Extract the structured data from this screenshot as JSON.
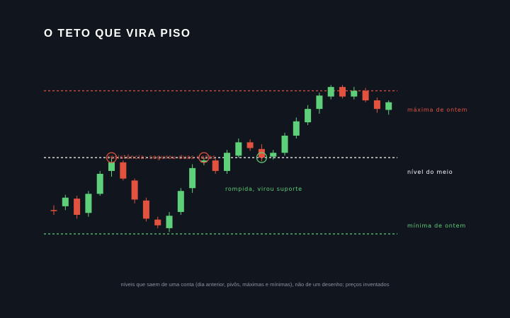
{
  "title": "O TETO QUE VIRA PISO",
  "caption": "níveis que saem de uma conta (dia anterior, pivôs, máximas e mínimas), não de um desenho; preços inventados",
  "colors": {
    "background": "#11161e",
    "up": "#5fd07a",
    "down": "#e2523f",
    "resistance": "#e2523f",
    "middle": "#ffffff",
    "support": "#5fd07a"
  },
  "chart_data": {
    "type": "candlestick",
    "title": "O TETO QUE VIRA PISO",
    "ylim": [
      81,
      103
    ],
    "levels": [
      {
        "key": "max",
        "label": "máxima de ontem",
        "value": 100,
        "color": "#e2523f"
      },
      {
        "key": "mid",
        "label": "nível do meio",
        "value": 93,
        "color": "#ffffff"
      },
      {
        "key": "min",
        "label": "mínima de ontem",
        "value": 85,
        "color": "#5fd07a"
      }
    ],
    "candles": [
      {
        "open": 87.5,
        "high": 88.0,
        "low": 87.0,
        "close": 87.4
      },
      {
        "open": 87.9,
        "high": 89.1,
        "low": 87.5,
        "close": 88.8
      },
      {
        "open": 88.7,
        "high": 89.0,
        "low": 86.6,
        "close": 87.0
      },
      {
        "open": 87.2,
        "high": 89.5,
        "low": 86.8,
        "close": 89.2
      },
      {
        "open": 89.2,
        "high": 91.6,
        "low": 89.0,
        "close": 91.3
      },
      {
        "open": 91.6,
        "high": 93.0,
        "low": 91.0,
        "close": 92.5
      },
      {
        "open": 92.5,
        "high": 92.7,
        "low": 90.6,
        "close": 90.8
      },
      {
        "open": 90.6,
        "high": 90.8,
        "low": 88.2,
        "close": 88.6
      },
      {
        "open": 88.5,
        "high": 88.8,
        "low": 86.3,
        "close": 86.6
      },
      {
        "open": 86.5,
        "high": 86.8,
        "low": 85.6,
        "close": 85.9
      },
      {
        "open": 85.6,
        "high": 87.3,
        "low": 85.2,
        "close": 86.9
      },
      {
        "open": 87.3,
        "high": 89.8,
        "low": 87.0,
        "close": 89.5
      },
      {
        "open": 89.8,
        "high": 92.3,
        "low": 89.3,
        "close": 91.9
      },
      {
        "open": 92.5,
        "high": 93.0,
        "low": 92.2,
        "close": 92.7
      },
      {
        "open": 92.7,
        "high": 92.9,
        "low": 91.3,
        "close": 91.6
      },
      {
        "open": 91.6,
        "high": 93.8,
        "low": 91.3,
        "close": 93.5
      },
      {
        "open": 93.2,
        "high": 95.0,
        "low": 93.0,
        "close": 94.6
      },
      {
        "open": 94.6,
        "high": 94.9,
        "low": 93.7,
        "close": 94.0
      },
      {
        "open": 93.9,
        "high": 94.4,
        "low": 92.6,
        "close": 93.0
      },
      {
        "open": 93.1,
        "high": 93.8,
        "low": 92.8,
        "close": 93.5
      },
      {
        "open": 93.5,
        "high": 95.6,
        "low": 93.2,
        "close": 95.3
      },
      {
        "open": 95.3,
        "high": 97.2,
        "low": 95.0,
        "close": 96.8
      },
      {
        "open": 96.7,
        "high": 98.5,
        "low": 96.4,
        "close": 98.1
      },
      {
        "open": 98.1,
        "high": 99.8,
        "low": 97.6,
        "close": 99.5
      },
      {
        "open": 99.4,
        "high": 100.6,
        "low": 99.1,
        "close": 100.4
      },
      {
        "open": 100.4,
        "high": 100.6,
        "low": 99.2,
        "close": 99.4
      },
      {
        "open": 99.4,
        "high": 100.4,
        "low": 99.1,
        "close": 100.0
      },
      {
        "open": 100.0,
        "high": 100.3,
        "low": 98.8,
        "close": 99.0
      },
      {
        "open": 99.0,
        "high": 99.3,
        "low": 97.7,
        "close": 98.1
      },
      {
        "open": 98.0,
        "high": 99.0,
        "low": 97.5,
        "close": 98.8
      }
    ],
    "annotations": [
      {
        "key": "resistance",
        "text": "resistência: segurou duas vezes",
        "color": "#e2523f",
        "candles": [
          5,
          13
        ]
      },
      {
        "key": "support",
        "text": "rompida, virou suporte",
        "color": "#5fd07a",
        "candles": [
          18
        ]
      }
    ]
  }
}
